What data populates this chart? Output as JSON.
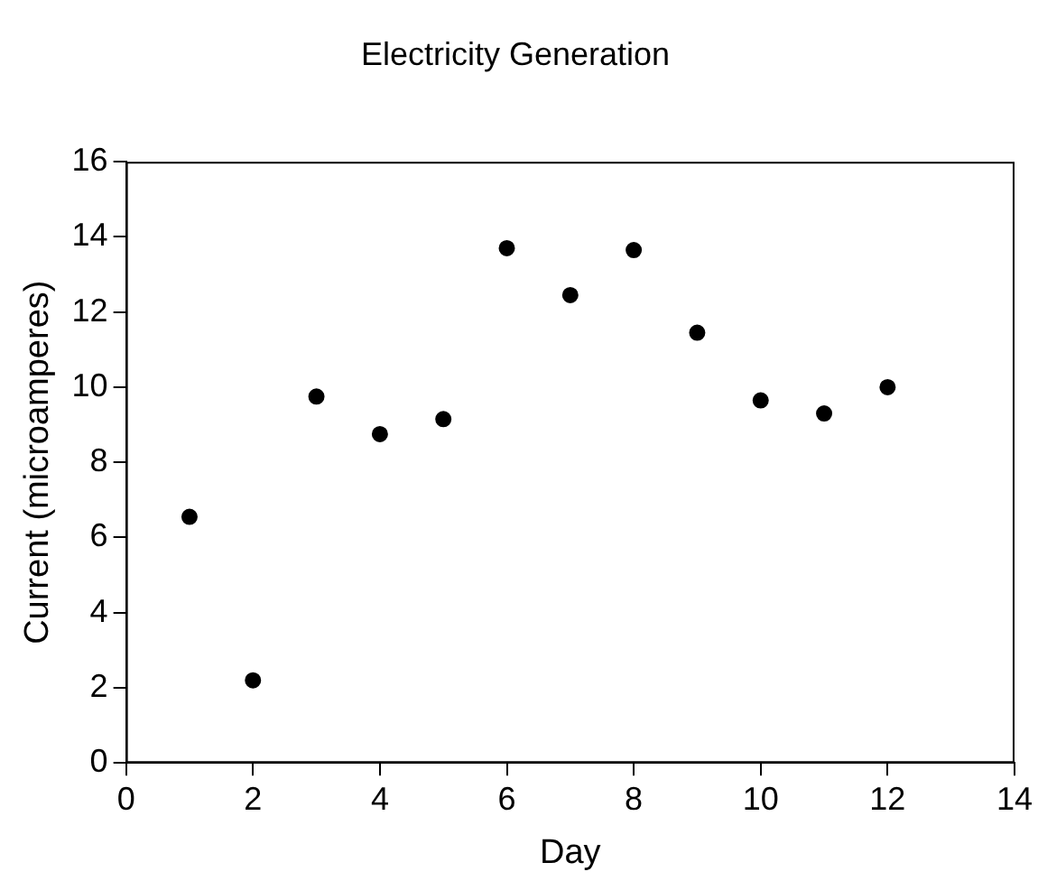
{
  "chart_data": {
    "type": "scatter",
    "title": "Electricity Generation",
    "xlabel": "Day",
    "ylabel": "Current (microamperes)",
    "x": [
      1,
      2,
      3,
      4,
      5,
      6,
      7,
      8,
      9,
      10,
      11,
      12
    ],
    "values": [
      6.55,
      2.2,
      9.75,
      8.75,
      9.15,
      13.7,
      12.45,
      13.65,
      11.45,
      9.65,
      9.3,
      10
    ],
    "color": "#000000",
    "marker": "circle",
    "xlim": [
      0,
      14
    ],
    "xticks": [
      0,
      2,
      4,
      6,
      8,
      10,
      12,
      14
    ],
    "ylim": [
      0,
      16
    ],
    "yticks": [
      0,
      2,
      4,
      6,
      8,
      10,
      12,
      14,
      16
    ],
    "grid": false,
    "legend": false
  }
}
